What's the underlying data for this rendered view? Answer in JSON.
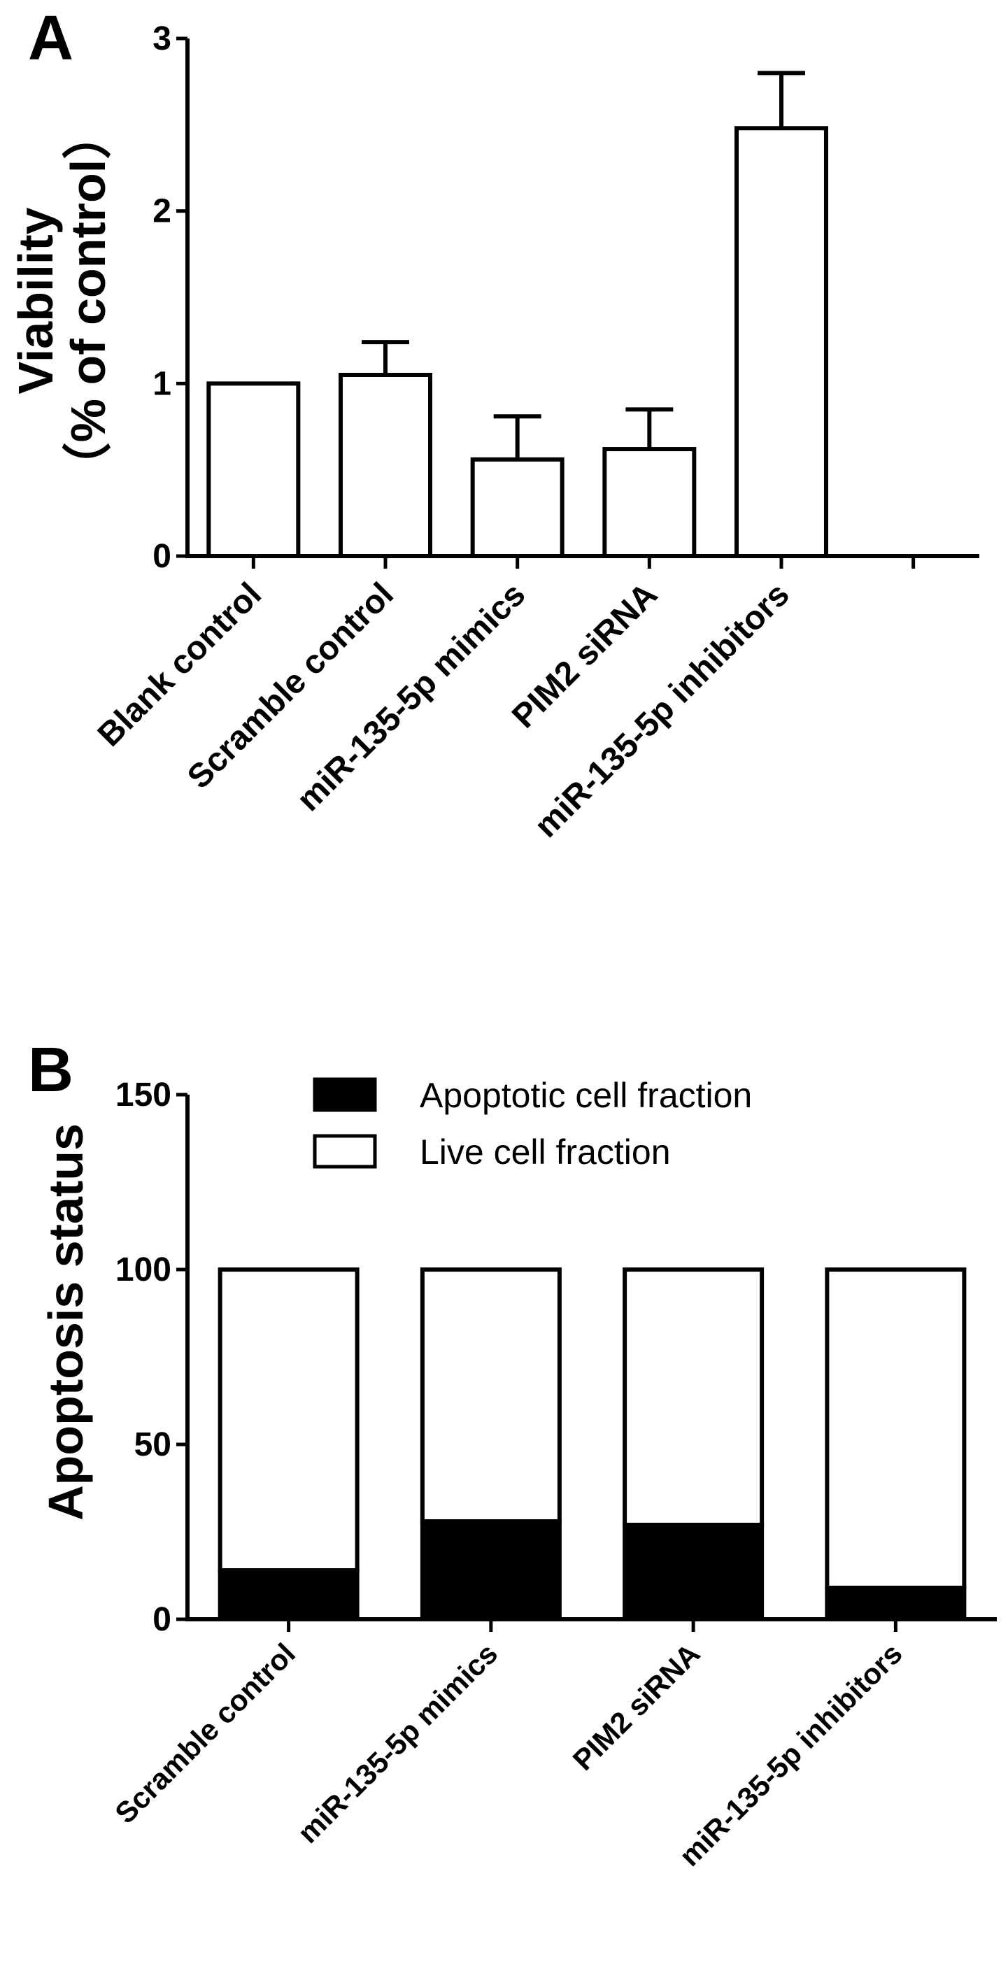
{
  "chart_data": [
    {
      "panel": "A",
      "type": "bar",
      "ylabel_line1": "Viability",
      "ylabel_line2": "（% of control）",
      "ylim": [
        0,
        3
      ],
      "yticks": [
        "0",
        "1",
        "2",
        "3"
      ],
      "categories": [
        "Blank control",
        "Scramble control",
        "miR-135-5p mimics",
        "PIM2 siRNA",
        "miR-135-5p inhibitors",
        ""
      ],
      "values": [
        1.0,
        1.05,
        0.56,
        0.62,
        2.48,
        null
      ],
      "errors": [
        0,
        0.19,
        0.25,
        0.23,
        0.32,
        null
      ],
      "bar_fill": "#ffffff",
      "bar_stroke": "#000000",
      "grid": false
    },
    {
      "panel": "B",
      "type": "bar",
      "stacked": true,
      "ylabel": "Apoptosis status",
      "ylim": [
        0,
        150
      ],
      "yticks": [
        "0",
        "50",
        "100",
        "150"
      ],
      "categories": [
        "Scramble control",
        "miR-135-5p mimics",
        "PIM2 siRNA",
        "miR-135-5p inhibitors"
      ],
      "series": [
        {
          "name": "Apoptotic cell fraction",
          "values": [
            14,
            28,
            27,
            9
          ],
          "color": "#000000"
        },
        {
          "name": "Live cell fraction",
          "values": [
            86,
            72,
            73,
            91
          ],
          "color": "#ffffff"
        }
      ],
      "legend_position": "top-center",
      "grid": false
    }
  ]
}
